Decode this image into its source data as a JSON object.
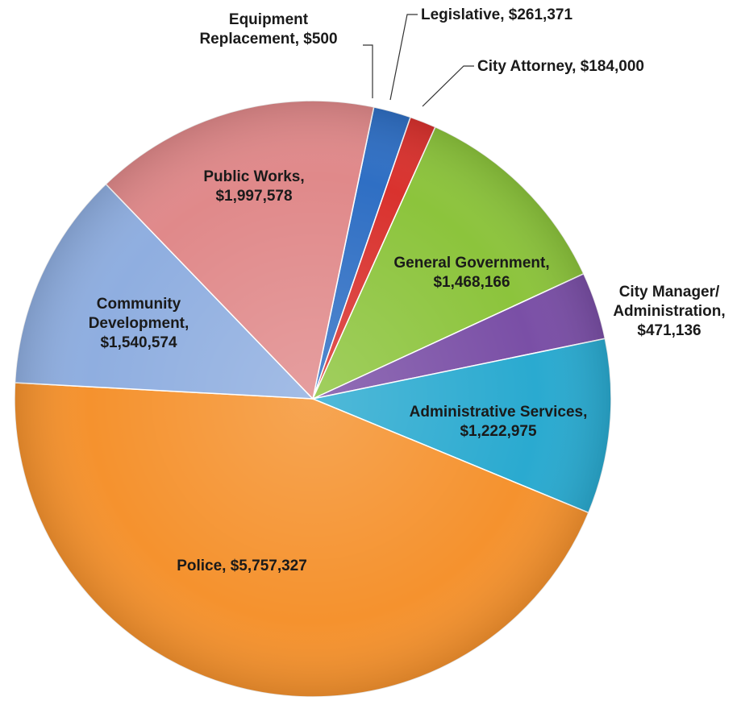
{
  "chart_data": {
    "type": "pie",
    "series": [
      {
        "name": "Equipment Replacement",
        "label_lines": [
          "Equipment",
          "Replacement,  $500"
        ],
        "value": 500,
        "color": "#8a8fd4"
      },
      {
        "name": "Legislative",
        "label_lines": [
          "Legislative,  $261,371"
        ],
        "value": 261371,
        "color": "#2f6fc4"
      },
      {
        "name": "City Attorney",
        "label_lines": [
          "City Attorney,  $184,000"
        ],
        "value": 184000,
        "color": "#d9322e"
      },
      {
        "name": "General Government",
        "label_lines": [
          "General Government,",
          "$1,468,166"
        ],
        "value": 1468166,
        "color": "#8cc43c"
      },
      {
        "name": "City Manager/ Administration",
        "label_lines": [
          "City Manager/",
          "Administration,",
          "$471,136"
        ],
        "value": 471136,
        "color": "#7a4fa6"
      },
      {
        "name": "Administrative Services",
        "label_lines": [
          "Administrative Services,",
          "$1,222,975"
        ],
        "value": 1222975,
        "color": "#2aaad0"
      },
      {
        "name": "Police",
        "label_lines": [
          "Police,  $5,757,327"
        ],
        "value": 5757327,
        "color": "#f5922e"
      },
      {
        "name": "Community Development",
        "label_lines": [
          "Community",
          "Development,",
          "$1,540,574"
        ],
        "value": 1540574,
        "color": "#8faee0"
      },
      {
        "name": "Public Works",
        "label_lines": [
          "Public Works,",
          "$1,997,578"
        ],
        "value": 1997578,
        "color": "#e0898a"
      }
    ],
    "legend": "none",
    "data_labels": "category name and value"
  }
}
